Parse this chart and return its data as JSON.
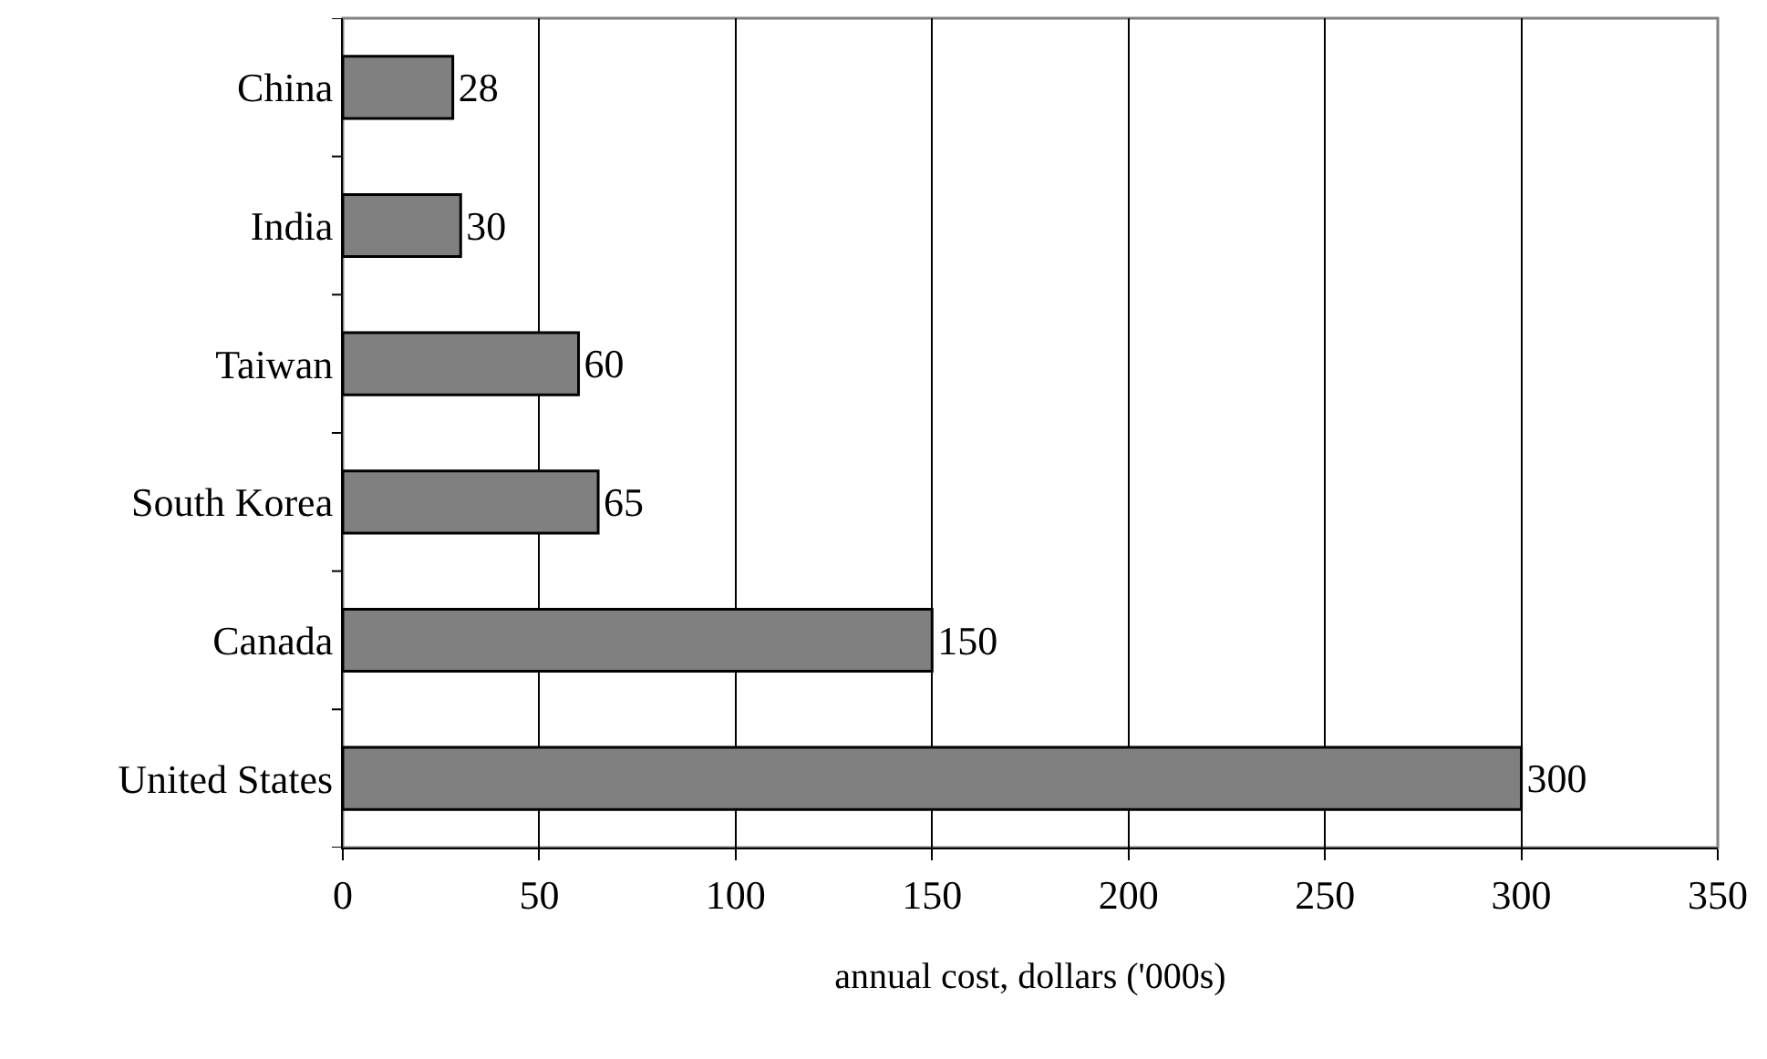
{
  "chart_data": {
    "type": "bar",
    "orientation": "horizontal",
    "xlabel": "annual cost, dollars ('000s)",
    "categories": [
      "China",
      "India",
      "Taiwan",
      "South Korea",
      "Canada",
      "United States"
    ],
    "values": [
      28,
      30,
      60,
      65,
      150,
      300
    ],
    "color": "#808080",
    "xlim": [
      0,
      350
    ],
    "xticks": [
      0,
      50,
      100,
      150,
      200,
      250,
      300,
      350
    ],
    "grid": "x",
    "data_labels": true
  }
}
